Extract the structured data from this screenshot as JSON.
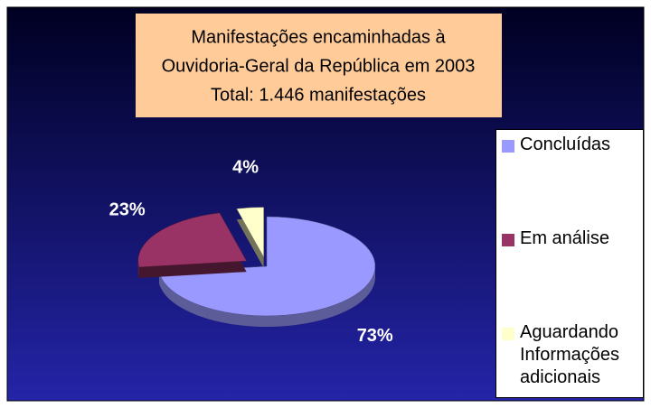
{
  "chart_data": {
    "type": "pie",
    "title": [
      "Manifestações encaminhadas à",
      "Ouvidoria-Geral da República em 2003"
    ],
    "subtitle": "Total: 1.446 manifestações",
    "categories": [
      "Concluídas",
      "Em análise",
      "Aguardando Informações adicionais"
    ],
    "values": [
      73,
      23,
      4
    ],
    "value_labels": [
      "73%",
      "23%",
      "4%"
    ],
    "colors": [
      "#9999ff",
      "#993366",
      "#ffffcc"
    ],
    "legend": "right",
    "three_d": true
  }
}
